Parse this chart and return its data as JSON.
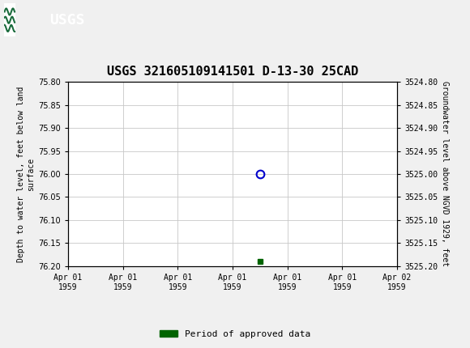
{
  "title": "USGS 321605109141501 D-13-30 25CAD",
  "left_ylabel": "Depth to water level, feet below land\nsurface",
  "right_ylabel": "Groundwater level above NGVD 1929, feet",
  "ylim_left": [
    75.8,
    76.2
  ],
  "ylim_right_top": 3525.2,
  "ylim_right_bottom": 3524.8,
  "left_yticks": [
    75.8,
    75.85,
    75.9,
    75.95,
    76.0,
    76.05,
    76.1,
    76.15,
    76.2
  ],
  "right_yticks": [
    3524.8,
    3524.85,
    3524.9,
    3524.95,
    3525.0,
    3525.05,
    3525.1,
    3525.15,
    3525.2
  ],
  "right_ytick_labels": [
    "3524.80",
    "3524.85",
    "3524.90",
    "3524.95",
    "3525.00",
    "3525.05",
    "3525.10",
    "3525.15",
    "3525.20"
  ],
  "data_point_x": 3.5,
  "data_point_y": 76.0,
  "green_bar_x": 3.5,
  "green_bar_y": 76.19,
  "xlim": [
    0,
    6
  ],
  "xtick_positions": [
    0,
    1,
    2,
    3,
    4,
    5,
    6
  ],
  "xtick_labels": [
    "Apr 01\n1959",
    "Apr 01\n1959",
    "Apr 01\n1959",
    "Apr 01\n1959",
    "Apr 01\n1959",
    "Apr 01\n1959",
    "Apr 02\n1959"
  ],
  "header_color": "#1a6b3c",
  "bg_color": "#f0f0f0",
  "plot_bg_color": "#ffffff",
  "grid_color": "#c8c8c8",
  "data_point_color": "#0000cc",
  "green_bar_color": "#006400",
  "legend_label": "Period of approved data",
  "title_fontsize": 11,
  "tick_fontsize": 7,
  "ylabel_fontsize": 7
}
